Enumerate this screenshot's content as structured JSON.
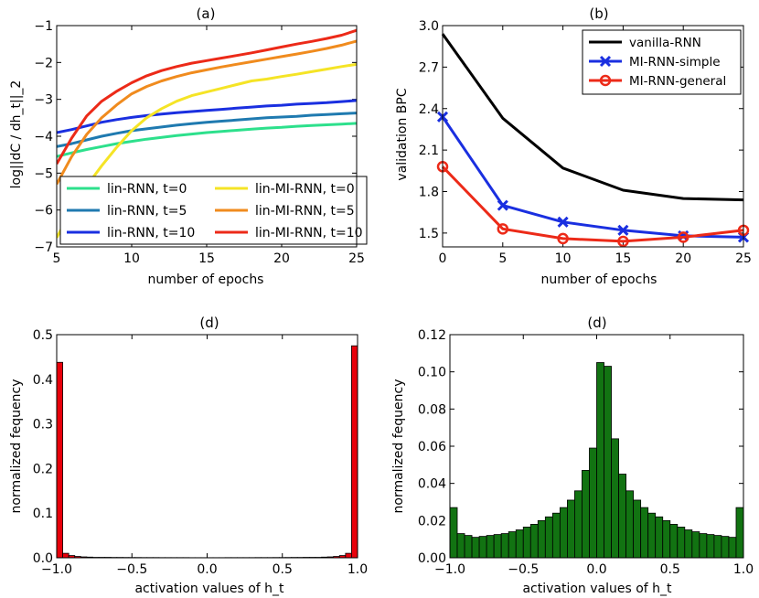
{
  "chart_data": [
    {
      "type": "line",
      "title": "(a)",
      "xlabel": "number of epochs",
      "ylabel": "log||dC / dh_t||_2",
      "xlim": [
        5,
        25
      ],
      "ylim": [
        -7,
        -1
      ],
      "xticks": [
        5,
        10,
        15,
        20,
        25
      ],
      "yticks": [
        -7,
        -6,
        -5,
        -4,
        -3,
        -2,
        -1
      ],
      "xtick_labels": [
        "5",
        "10",
        "15",
        "20",
        "25"
      ],
      "ytick_labels": [
        "−7",
        "−6",
        "−5",
        "−4",
        "−3",
        "−2",
        "−1"
      ],
      "grid": false,
      "legend": "bottom, two columns",
      "x": [
        5,
        6,
        7,
        8,
        9,
        10,
        11,
        12,
        13,
        14,
        15,
        16,
        17,
        18,
        19,
        20,
        21,
        22,
        23,
        24,
        25
      ],
      "series": [
        {
          "name": "lin-RNN, t=0",
          "color": "#2de08c",
          "values": [
            -4.55,
            -4.45,
            -4.36,
            -4.28,
            -4.2,
            -4.14,
            -4.08,
            -4.03,
            -3.98,
            -3.94,
            -3.9,
            -3.87,
            -3.84,
            -3.81,
            -3.78,
            -3.76,
            -3.73,
            -3.71,
            -3.69,
            -3.67,
            -3.65
          ]
        },
        {
          "name": "lin-RNN, t=5",
          "color": "#1f7ab0",
          "values": [
            -4.28,
            -4.2,
            -4.1,
            -4.0,
            -3.92,
            -3.85,
            -3.8,
            -3.75,
            -3.7,
            -3.66,
            -3.62,
            -3.59,
            -3.56,
            -3.53,
            -3.5,
            -3.48,
            -3.46,
            -3.43,
            -3.41,
            -3.39,
            -3.37
          ]
        },
        {
          "name": "lin-RNN, t=10",
          "color": "#1a2fe0",
          "values": [
            -3.9,
            -3.82,
            -3.72,
            -3.62,
            -3.55,
            -3.49,
            -3.44,
            -3.4,
            -3.36,
            -3.33,
            -3.3,
            -3.27,
            -3.24,
            -3.21,
            -3.18,
            -3.16,
            -3.13,
            -3.11,
            -3.09,
            -3.06,
            -3.03
          ]
        },
        {
          "name": "lin-MI-RNN, t=0",
          "color": "#f5e426",
          "values": [
            -6.75,
            -6.0,
            -5.35,
            -4.8,
            -4.3,
            -3.85,
            -3.5,
            -3.25,
            -3.05,
            -2.9,
            -2.8,
            -2.7,
            -2.6,
            -2.5,
            -2.45,
            -2.38,
            -2.32,
            -2.25,
            -2.18,
            -2.11,
            -2.05
          ]
        },
        {
          "name": "lin-MI-RNN, t=5",
          "color": "#f08b1e",
          "values": [
            -5.3,
            -4.55,
            -3.95,
            -3.5,
            -3.15,
            -2.85,
            -2.65,
            -2.5,
            -2.38,
            -2.28,
            -2.2,
            -2.12,
            -2.05,
            -1.98,
            -1.91,
            -1.84,
            -1.77,
            -1.7,
            -1.62,
            -1.53,
            -1.42
          ]
        },
        {
          "name": "lin-MI-RNN, t=10",
          "color": "#ec2a18",
          "values": [
            -4.75,
            -4.05,
            -3.45,
            -3.05,
            -2.78,
            -2.55,
            -2.36,
            -2.22,
            -2.11,
            -2.02,
            -1.95,
            -1.88,
            -1.81,
            -1.74,
            -1.66,
            -1.58,
            -1.5,
            -1.43,
            -1.35,
            -1.26,
            -1.13
          ]
        }
      ]
    },
    {
      "type": "line",
      "title": "(b)",
      "xlabel": "number of epochs",
      "ylabel": "validation BPC",
      "xlim": [
        0,
        25
      ],
      "ylim": [
        1.4,
        3.0
      ],
      "xticks": [
        0,
        5,
        10,
        15,
        20,
        25
      ],
      "yticks": [
        1.5,
        1.8,
        2.1,
        2.4,
        2.7,
        3.0
      ],
      "xtick_labels": [
        "0",
        "5",
        "10",
        "15",
        "20",
        "25"
      ],
      "ytick_labels": [
        "1.5",
        "1.8",
        "2.1",
        "2.4",
        "2.7",
        "3.0"
      ],
      "grid": false,
      "legend": "top-right",
      "x": [
        0,
        5,
        10,
        15,
        20,
        25
      ],
      "series": [
        {
          "name": "vanilla-RNN",
          "color": "#000000",
          "marker": "none",
          "values": [
            2.94,
            2.33,
            1.97,
            1.81,
            1.75,
            1.74
          ]
        },
        {
          "name": "MI-RNN-simple",
          "color": "#1a2fe0",
          "marker": "x",
          "values": [
            2.34,
            1.7,
            1.58,
            1.52,
            1.48,
            1.47
          ]
        },
        {
          "name": "MI-RNN-general",
          "color": "#ec2a18",
          "marker": "o",
          "values": [
            1.98,
            1.53,
            1.46,
            1.44,
            1.47,
            1.52
          ]
        }
      ]
    },
    {
      "type": "bar",
      "title": "(d)",
      "xlabel": "activation values of h_t",
      "ylabel": "normalized fequency",
      "xlim": [
        -1.0,
        1.0
      ],
      "ylim": [
        0.0,
        0.5
      ],
      "xticks": [
        -1.0,
        -0.5,
        0.0,
        0.5,
        1.0
      ],
      "yticks": [
        0.0,
        0.1,
        0.2,
        0.3,
        0.4,
        0.5
      ],
      "xtick_labels": [
        "−1.0",
        "−0.5",
        "0.0",
        "0.5",
        "1.0"
      ],
      "ytick_labels": [
        "0.0",
        "0.1",
        "0.2",
        "0.3",
        "0.4",
        "0.5"
      ],
      "color": "#e8000b",
      "bins": 50,
      "values": [
        0.438,
        0.01,
        0.005,
        0.003,
        0.002,
        0.0015,
        0.001,
        0.001,
        0.001,
        0.0008,
        0.0008,
        0.0007,
        0.0006,
        0.0006,
        0.0005,
        0.0005,
        0.0005,
        0.0004,
        0.0004,
        0.0004,
        0.0004,
        0.0004,
        0.0003,
        0.0003,
        0.0003,
        0.0003,
        0.0003,
        0.0003,
        0.0004,
        0.0004,
        0.0004,
        0.0004,
        0.0004,
        0.0005,
        0.0005,
        0.0005,
        0.0006,
        0.0006,
        0.0007,
        0.0008,
        0.0008,
        0.001,
        0.001,
        0.001,
        0.0015,
        0.002,
        0.003,
        0.005,
        0.01,
        0.475
      ]
    },
    {
      "type": "bar",
      "title": "(d)",
      "xlabel": "activation values of h_t",
      "ylabel": "normalized fequency",
      "xlim": [
        -1.0,
        1.0
      ],
      "ylim": [
        0.0,
        0.12
      ],
      "xticks": [
        -1.0,
        -0.5,
        0.0,
        0.5,
        1.0
      ],
      "yticks": [
        0.0,
        0.02,
        0.04,
        0.06,
        0.08,
        0.1,
        0.12
      ],
      "xtick_labels": [
        "−1.0",
        "−0.5",
        "0.0",
        "0.5",
        "1.0"
      ],
      "ytick_labels": [
        "0.00",
        "0.02",
        "0.04",
        "0.06",
        "0.08",
        "0.10",
        "0.12"
      ],
      "color": "#127312",
      "bins": 40,
      "values": [
        0.027,
        0.013,
        0.012,
        0.011,
        0.0115,
        0.012,
        0.0125,
        0.013,
        0.014,
        0.015,
        0.0165,
        0.018,
        0.02,
        0.022,
        0.024,
        0.027,
        0.031,
        0.036,
        0.047,
        0.059,
        0.105,
        0.103,
        0.064,
        0.045,
        0.036,
        0.031,
        0.027,
        0.024,
        0.022,
        0.02,
        0.018,
        0.0165,
        0.015,
        0.014,
        0.013,
        0.0125,
        0.012,
        0.0115,
        0.011,
        0.027
      ]
    }
  ]
}
